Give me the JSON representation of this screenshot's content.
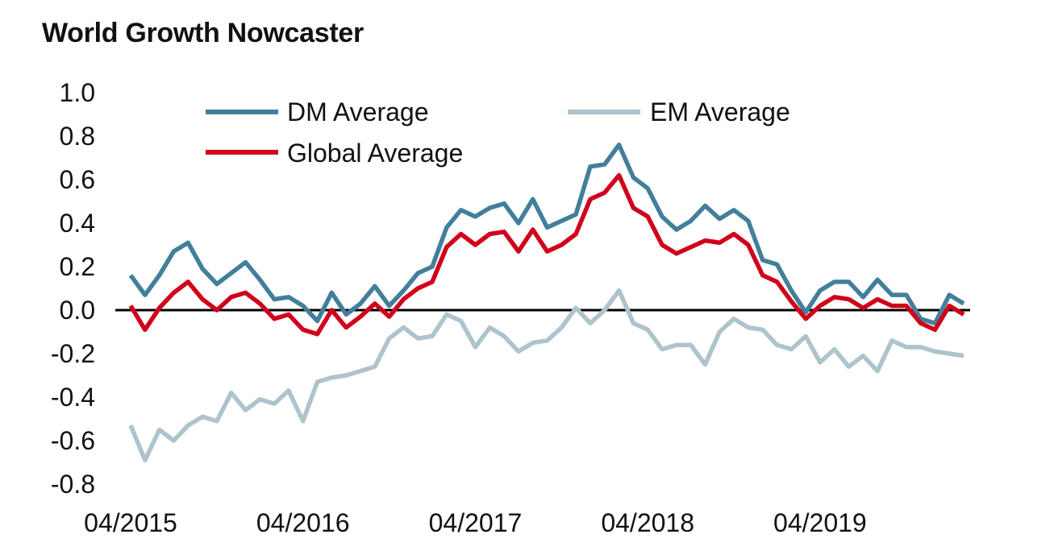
{
  "title": "World Growth Nowcaster",
  "colors": {
    "dm": "#427f9b",
    "em": "#aec3cc",
    "global": "#d0021b",
    "zero": "#000000"
  },
  "chart_data": {
    "type": "line",
    "title": "World Growth Nowcaster",
    "xlabel": "",
    "ylabel": "",
    "ylim": [
      -0.8,
      1.0
    ],
    "yticks": [
      "1.0",
      "0.8",
      "0.6",
      "0.4",
      "0.2",
      "0.0",
      "-0.2",
      "-0.4",
      "-0.6",
      "-0.8"
    ],
    "ytick_values": [
      1.0,
      0.8,
      0.6,
      0.4,
      0.2,
      0.0,
      -0.2,
      -0.4,
      -0.6,
      -0.8
    ],
    "xticks": [
      "04/2015",
      "04/2016",
      "04/2017",
      "04/2018",
      "04/2019"
    ],
    "xtick_index": [
      0,
      12,
      24,
      36,
      48
    ],
    "legend": "top",
    "grid": false,
    "x_start": "04/2015",
    "x_frequency": "monthly",
    "series": [
      {
        "name": "DM Average",
        "color": "#427f9b",
        "values": [
          0.16,
          0.07,
          0.16,
          0.27,
          0.31,
          0.19,
          0.12,
          0.17,
          0.22,
          0.14,
          0.05,
          0.06,
          0.02,
          -0.05,
          0.08,
          -0.02,
          0.03,
          0.11,
          0.02,
          0.09,
          0.17,
          0.2,
          0.38,
          0.46,
          0.43,
          0.47,
          0.49,
          0.4,
          0.51,
          0.38,
          0.41,
          0.44,
          0.66,
          0.67,
          0.76,
          0.61,
          0.56,
          0.43,
          0.37,
          0.41,
          0.48,
          0.42,
          0.46,
          0.41,
          0.23,
          0.21,
          0.09,
          -0.01,
          0.09,
          0.13,
          0.13,
          0.06,
          0.14,
          0.07,
          0.07,
          -0.04,
          -0.06,
          0.07,
          0.03
        ]
      },
      {
        "name": "EM Average",
        "color": "#aec3cc",
        "values": [
          -0.53,
          -0.69,
          -0.55,
          -0.6,
          -0.53,
          -0.49,
          -0.51,
          -0.38,
          -0.46,
          -0.41,
          -0.43,
          -0.37,
          -0.51,
          -0.33,
          -0.31,
          -0.3,
          -0.28,
          -0.26,
          -0.13,
          -0.08,
          -0.13,
          -0.12,
          -0.02,
          -0.05,
          -0.17,
          -0.08,
          -0.12,
          -0.19,
          -0.15,
          -0.14,
          -0.08,
          0.01,
          -0.06,
          0.0,
          0.09,
          -0.06,
          -0.09,
          -0.18,
          -0.16,
          -0.16,
          -0.25,
          -0.1,
          -0.04,
          -0.08,
          -0.09,
          -0.16,
          -0.18,
          -0.12,
          -0.24,
          -0.18,
          -0.26,
          -0.21,
          -0.28,
          -0.14,
          -0.17,
          -0.17,
          -0.19,
          -0.2,
          -0.21
        ]
      },
      {
        "name": "Global Average",
        "color": "#d0021b",
        "values": [
          0.02,
          -0.09,
          0.01,
          0.08,
          0.13,
          0.05,
          0.0,
          0.06,
          0.08,
          0.03,
          -0.04,
          -0.02,
          -0.09,
          -0.11,
          0.0,
          -0.08,
          -0.03,
          0.03,
          -0.03,
          0.05,
          0.1,
          0.13,
          0.29,
          0.35,
          0.3,
          0.35,
          0.36,
          0.27,
          0.37,
          0.27,
          0.3,
          0.35,
          0.51,
          0.54,
          0.62,
          0.47,
          0.43,
          0.3,
          0.26,
          0.29,
          0.32,
          0.31,
          0.35,
          0.3,
          0.16,
          0.13,
          0.04,
          -0.04,
          0.02,
          0.06,
          0.05,
          0.01,
          0.05,
          0.02,
          0.02,
          -0.06,
          -0.09,
          0.02,
          -0.02
        ]
      }
    ]
  }
}
